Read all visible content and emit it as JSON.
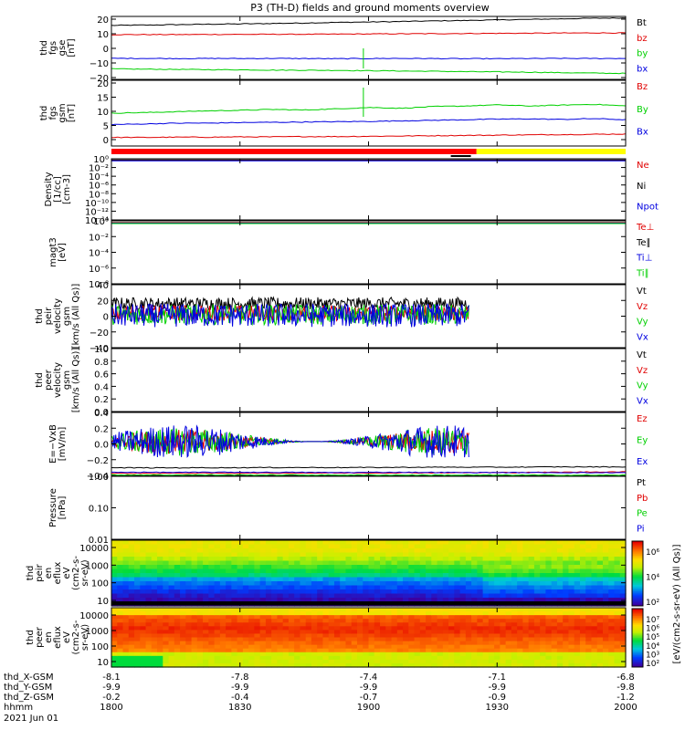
{
  "title": "P3 (TH-D) fields and ground moments overview",
  "colors": {
    "black": "#000000",
    "red": "#e00000",
    "green": "#00d000",
    "blue": "#0000e0",
    "bar_red": "#ff0000",
    "bar_yellow": "#ffff00"
  },
  "chart_data": {
    "type": "line",
    "time": {
      "start_label": "1800",
      "end_label": "2000"
    },
    "panels": [
      {
        "id": "fgs_gse",
        "ylabel": [
          "thd",
          "fgs",
          "gse",
          "[nT]"
        ],
        "yticks": [
          "20",
          "10",
          "0",
          "−10",
          "−20"
        ],
        "ylim": [
          -20,
          22
        ],
        "series": [
          {
            "name": "Bt",
            "color": "black",
            "values": [
              16,
              16.2,
              16.5,
              16.8,
              17,
              17.3,
              17.6,
              18,
              18.3,
              18.6,
              19,
              19.3,
              19.7,
              20,
              20.4,
              20.8,
              21
            ]
          },
          {
            "name": "bz",
            "color": "red",
            "values": [
              9.8,
              9.9,
              9.9,
              10,
              10,
              10.1,
              10.1,
              10.2,
              10.3,
              10.4,
              10.5,
              10.6,
              10.7,
              10.8,
              10.9,
              11,
              11
            ]
          },
          {
            "name": "by",
            "color": "green",
            "values": [
              -13,
              -13.2,
              -13.3,
              -13.5,
              -13.6,
              -13.8,
              -13.9,
              -14,
              -14.2,
              -14.4,
              -14.6,
              -14.8,
              -15,
              -15.2,
              -15.5,
              -15.8,
              -16
            ]
          },
          {
            "name": "bx",
            "color": "blue",
            "values": [
              -6,
              -6,
              -6.1,
              -6,
              -6.1,
              -6,
              -6.1,
              -6.2,
              -6.1,
              -6,
              -6.1,
              -6.2,
              -6.2,
              -6.1,
              -6,
              -6.1,
              -6
            ]
          }
        ]
      },
      {
        "id": "fgs_gsm",
        "ylabel": [
          "thd",
          "fgs",
          "gsm",
          "[nT]"
        ],
        "yticks": [
          "20",
          "15",
          "10",
          "5",
          "0"
        ],
        "ylim": [
          -2,
          21
        ],
        "series": [
          {
            "name": "Bz",
            "color": "red",
            "values": [
              1,
              1,
              1.1,
              1.1,
              1.2,
              1.2,
              1.3,
              1.3,
              1.4,
              1.5,
              1.6,
              1.7,
              1.8,
              1.9,
              2,
              2.1,
              2.2
            ]
          },
          {
            "name": "By",
            "color": "green",
            "values": [
              9.5,
              9.7,
              10,
              10.3,
              10.5,
              10.8,
              10.6,
              11,
              11.5,
              11.2,
              11.8,
              12,
              12.4,
              12,
              12.3,
              12.6,
              12
            ]
          },
          {
            "name": "Bx",
            "color": "blue",
            "values": [
              5.5,
              5.7,
              6,
              6,
              6.2,
              6.3,
              6.4,
              6.5,
              6.6,
              6.8,
              7,
              7.2,
              7.4,
              7.5,
              7.3,
              7.6,
              7.2
            ]
          }
        ]
      },
      {
        "id": "density",
        "ylabel": [
          "Density",
          "[1/cc]",
          "[cm-3]"
        ],
        "yticks": [
          "10⁰",
          "10⁻²",
          "10⁻⁴",
          "10⁻⁶",
          "10⁻⁸",
          "10⁻¹⁰",
          "10⁻¹²",
          "10⁻¹⁴"
        ],
        "ylim": [
          -15,
          0.3
        ],
        "log": true,
        "series": [
          {
            "name": "Ne",
            "color": "red"
          },
          {
            "name": "Ni",
            "color": "black"
          },
          {
            "name": "Npot",
            "color": "blue"
          }
        ]
      },
      {
        "id": "temperature",
        "ylabel": [
          "magt3",
          "[eV]"
        ],
        "yticks": [
          "10⁰",
          "10⁻²",
          "10⁻⁴",
          "10⁻⁶",
          "10⁻⁸"
        ],
        "ylim": [
          -9,
          0.3
        ],
        "log": true,
        "series": [
          {
            "name": "Te⊥",
            "color": "red"
          },
          {
            "name": "Te∥",
            "color": "black"
          },
          {
            "name": "Ti⊥",
            "color": "blue"
          },
          {
            "name": "Ti∥",
            "color": "green"
          }
        ]
      },
      {
        "id": "peir_velocity",
        "ylabel": [
          "thd",
          "peir",
          "velocity",
          "gsm",
          "[km/s (All Qs)]"
        ],
        "yticks": [
          "40",
          "20",
          "0",
          "−20",
          "−40"
        ],
        "ylim": [
          -40,
          40
        ],
        "series": [
          {
            "name": "Vt",
            "color": "black"
          },
          {
            "name": "Vz",
            "color": "red"
          },
          {
            "name": "Vy",
            "color": "green"
          },
          {
            "name": "Vx",
            "color": "blue"
          }
        ]
      },
      {
        "id": "peer_velocity",
        "ylabel": [
          "thd",
          "peer",
          "velocity",
          "gsm",
          "[km/s (All Qs)]"
        ],
        "yticks": [
          "1.0",
          "0.8",
          "0.6",
          "0.4",
          "0.2",
          "0.0"
        ],
        "ylim": [
          0,
          1
        ],
        "series": [
          {
            "name": "Vt",
            "color": "black"
          },
          {
            "name": "Vz",
            "color": "red"
          },
          {
            "name": "Vy",
            "color": "green"
          },
          {
            "name": "Vx",
            "color": "blue"
          }
        ]
      },
      {
        "id": "efield",
        "ylabel": [
          "E=−VxB",
          "[mV/m]"
        ],
        "yticks": [
          "0.4",
          "0.2",
          "0.0",
          "−0.2",
          "−0.4"
        ],
        "ylim": [
          -0.4,
          0.4
        ],
        "series": [
          {
            "name": "Ez",
            "color": "red"
          },
          {
            "name": "Ey",
            "color": "green"
          },
          {
            "name": "Ex",
            "color": "blue"
          }
        ]
      },
      {
        "id": "pressure",
        "ylabel": [
          "Pressure",
          "[nPa]"
        ],
        "yticks": [
          "1.00",
          "0.10",
          "0.01"
        ],
        "ylim": [
          -2,
          0
        ],
        "log": true,
        "series": [
          {
            "name": "Pt",
            "color": "black",
            "values": [
              0.27,
              0.27,
              0.27,
              0.275,
              0.275,
              0.28,
              0.28,
              0.28,
              0.28,
              0.285,
              0.29,
              0.29,
              0.29,
              0.295,
              0.3,
              0.3,
              0.3
            ]
          },
          {
            "name": "Pb",
            "color": "red",
            "values": [
              0.095,
              0.096,
              0.097,
              0.098,
              0.1,
              0.102,
              0.104,
              0.106,
              0.108,
              0.11,
              0.113,
              0.117,
              0.12,
              0.125,
              0.13,
              0.14,
              0.145
            ]
          },
          {
            "name": "Pe",
            "color": "green",
            "values": [
              0.045,
              0.045,
              0.044,
              0.044,
              0.043,
              0.043,
              0.042,
              0.042,
              0.041,
              0.041,
              0.04,
              0.04,
              0.039,
              0.039,
              0.038,
              0.038,
              0.037
            ]
          },
          {
            "name": "Pi",
            "color": "blue",
            "values": [
              0.13,
              0.13,
              0.125,
              0.13,
              0.13,
              0.128,
              0.125,
              0.12,
              0.125,
              0.13,
              0.125,
              0.12,
              0.122,
              0.118,
              0.12,
              0.115,
              0.118
            ]
          }
        ]
      },
      {
        "id": "peir_eflux",
        "ylabel": [
          "thd",
          "peir",
          "en",
          "eflux",
          "eV",
          "(cm2-s-",
          "sr-eV)"
        ],
        "yticks": [
          "10000",
          "1000",
          "100",
          "10"
        ],
        "type": "heatmap"
      },
      {
        "id": "peer_eflux",
        "ylabel": [
          "thd",
          "peer",
          "en",
          "eflux",
          "eV",
          "(cm2-s-",
          "sr-eV)"
        ],
        "yticks": [
          "10000",
          "1000",
          "100",
          "10"
        ],
        "type": "heatmap"
      }
    ],
    "colorbar": {
      "label": "[eV/(cm2-s-sr-eV) (All Qs)]",
      "upper_ticks": [
        "10⁶",
        "10⁴",
        "10²"
      ],
      "lower_ticks": [
        "10⁷",
        "10⁶",
        "10⁵",
        "10⁴",
        "10³",
        "10²"
      ]
    },
    "xaxis": {
      "rows": [
        {
          "label": "thd_X-GSM",
          "values": [
            "-8.1",
            "-7.8",
            "-7.4",
            "-7.1",
            "-6.8"
          ]
        },
        {
          "label": "thd_Y-GSM",
          "values": [
            "-9.9",
            "-9.9",
            "-9.9",
            "-9.9",
            "-9.8"
          ]
        },
        {
          "label": "thd_Z-GSM",
          "values": [
            "-0.2",
            "-0.4",
            "-0.7",
            "-0.9",
            "-1.2"
          ]
        },
        {
          "label": "hhmm",
          "values": [
            "1800",
            "1830",
            "1900",
            "1930",
            "2000"
          ]
        }
      ],
      "date": "2021 Jun 01"
    }
  }
}
